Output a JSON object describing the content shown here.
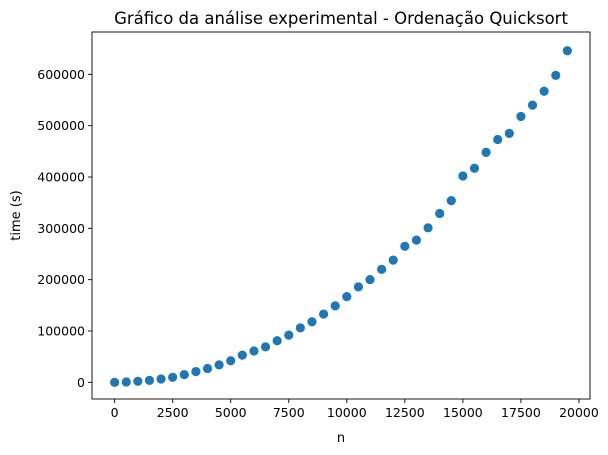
{
  "chart_data": {
    "type": "scatter",
    "title": "Gráfico da análise experimental - Ordenação Quicksort",
    "xlabel": "n",
    "ylabel": "time (s)",
    "xlim": [
      -975,
      20475
    ],
    "ylim": [
      -32500,
      682500
    ],
    "xticks": [
      0,
      2500,
      5000,
      7500,
      10000,
      12500,
      15000,
      17500,
      20000
    ],
    "xtick_labels": [
      "0",
      "2500",
      "5000",
      "7500",
      "10000",
      "12500",
      "15000",
      "17500",
      "20000"
    ],
    "yticks": [
      0,
      100000,
      200000,
      300000,
      400000,
      500000,
      600000
    ],
    "ytick_labels": [
      "0",
      "100000",
      "200000",
      "300000",
      "400000",
      "500000",
      "600000"
    ],
    "grid": false,
    "color": "#1f77b4",
    "x": [
      0,
      500,
      1000,
      1500,
      2000,
      2500,
      3000,
      3500,
      4000,
      4500,
      5000,
      5500,
      6000,
      6500,
      7000,
      7500,
      8000,
      8500,
      9000,
      9500,
      10000,
      10500,
      11000,
      11500,
      12000,
      12500,
      13000,
      13500,
      14000,
      14500,
      15000,
      15500,
      16000,
      16500,
      17000,
      17500,
      18000,
      18500,
      19000,
      19500
    ],
    "y": [
      0,
      700,
      2000,
      3800,
      6500,
      9800,
      15000,
      21000,
      27000,
      34000,
      42000,
      53000,
      61000,
      69000,
      81000,
      92000,
      106000,
      118000,
      133000,
      149000,
      167000,
      186000,
      200000,
      220000,
      238000,
      265000,
      277000,
      301000,
      329000,
      354000,
      402000,
      417000,
      448000,
      473000,
      485000,
      518000,
      540000,
      567000,
      598000,
      646000
    ]
  }
}
